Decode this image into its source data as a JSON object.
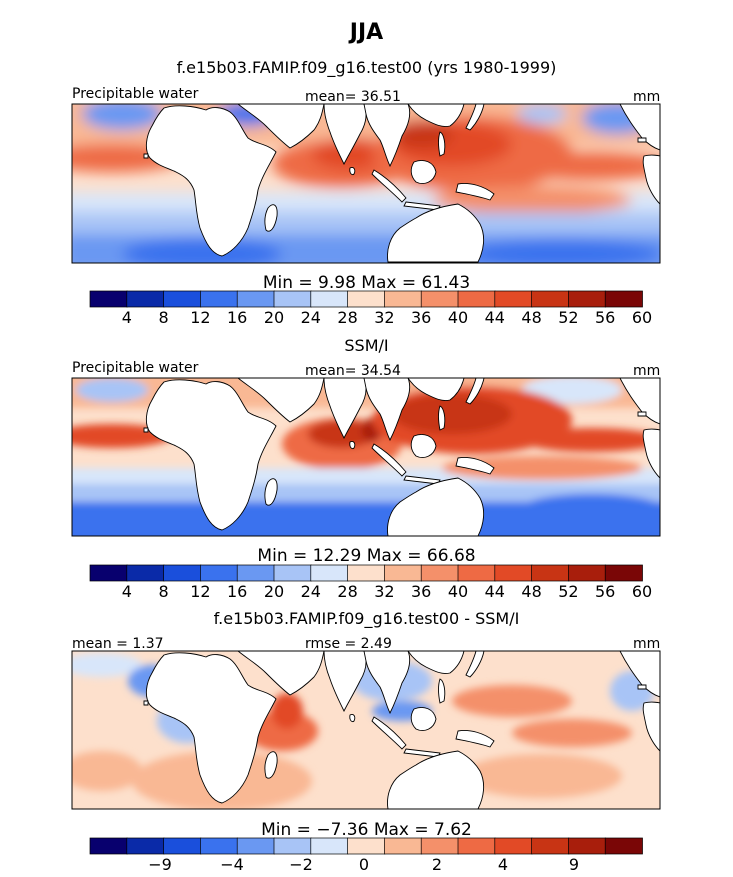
{
  "figure": {
    "season": "JJA"
  },
  "panels": [
    {
      "id": "model",
      "title": "f.e15b03.FAMIP.f09_g16.test00 (yrs 1980-1999)",
      "left_label": "Precipitable water",
      "center_label": "mean=  36.51",
      "units": "mm",
      "min_max_text": "Min =    9.98 Max =   61.43",
      "colorbar_labels": [
        "4",
        "8",
        "12",
        "16",
        "20",
        "24",
        "28",
        "32",
        "36",
        "40",
        "44",
        "48",
        "52",
        "56",
        "60"
      ]
    },
    {
      "id": "obs",
      "title": "SSM/I",
      "left_label": "Precipitable water",
      "center_label": "mean=  34.54",
      "units": "mm",
      "min_max_text": "Min =   12.29 Max =   66.68",
      "colorbar_labels": [
        "4",
        "8",
        "12",
        "16",
        "20",
        "24",
        "28",
        "32",
        "36",
        "40",
        "44",
        "48",
        "52",
        "56",
        "60"
      ]
    },
    {
      "id": "diff",
      "title": "f.e15b03.FAMIP.f09_g16.test00 - SSM/I",
      "left_label": "mean =    1.37",
      "center_label": "rmse =    2.49",
      "units": "mm",
      "min_max_text": "Min =  −7.36 Max =    7.62",
      "colorbar_labels": [
        "−9",
        "−4",
        "−2",
        "0",
        "2",
        "4",
        "9"
      ]
    }
  ],
  "colors": {
    "abs_scale": [
      "#08006e",
      "#0a2aa8",
      "#1a4fdc",
      "#3a72ee",
      "#6a98f2",
      "#a8c4f6",
      "#d8e6fa",
      "#fde0cc",
      "#f9b894",
      "#f4906a",
      "#ee6a44",
      "#e24a26",
      "#c83414",
      "#a81e0c",
      "#7a0606"
    ],
    "diff_scale": [
      "#08006e",
      "#0a2aa8",
      "#1a4fdc",
      "#3a72ee",
      "#6a98f2",
      "#a8c4f6",
      "#d8e6fa",
      "#fde0cc",
      "#f9b894",
      "#f4906a",
      "#ee6a44",
      "#e24a26",
      "#c83414",
      "#a81e0c",
      "#7a0606"
    ]
  }
}
